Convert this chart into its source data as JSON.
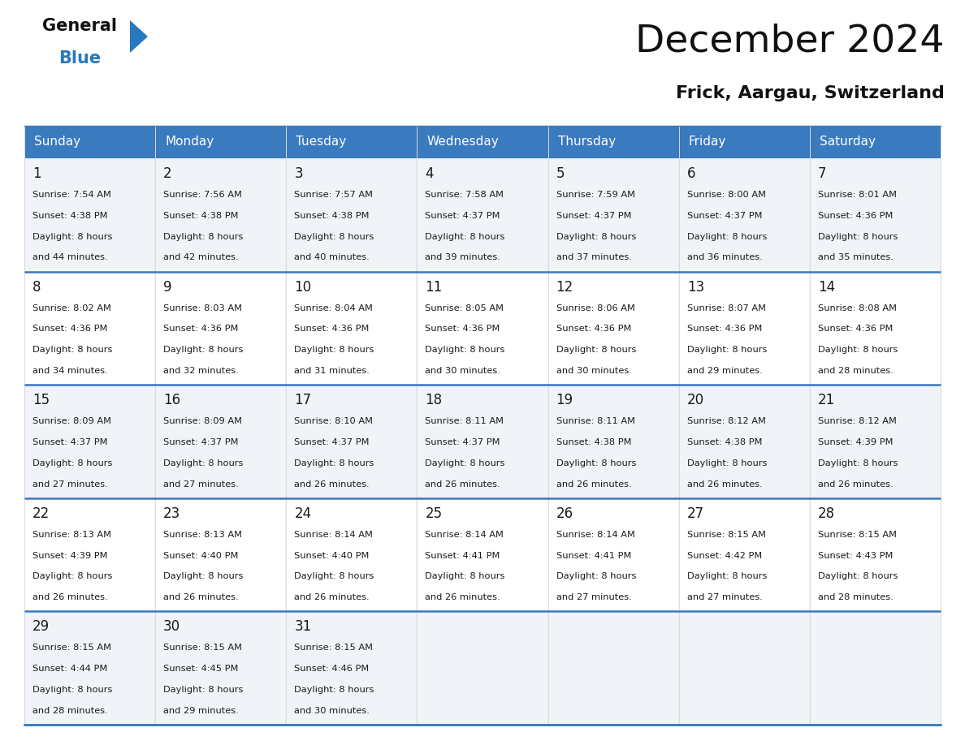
{
  "title": "December 2024",
  "subtitle": "Frick, Aargau, Switzerland",
  "header_color": "#3a7abf",
  "header_text_color": "#ffffff",
  "cell_bg_color": "#f0f4f8",
  "cell_bg_white": "#ffffff",
  "separator_color": "#3a7abf",
  "grid_color": "#cccccc",
  "text_color": "#1a1a1a",
  "day_names": [
    "Sunday",
    "Monday",
    "Tuesday",
    "Wednesday",
    "Thursday",
    "Friday",
    "Saturday"
  ],
  "days": [
    {
      "day": 1,
      "col": 0,
      "row": 0,
      "sunrise": "7:54 AM",
      "sunset": "4:38 PM",
      "daylight_min": "44"
    },
    {
      "day": 2,
      "col": 1,
      "row": 0,
      "sunrise": "7:56 AM",
      "sunset": "4:38 PM",
      "daylight_min": "42"
    },
    {
      "day": 3,
      "col": 2,
      "row": 0,
      "sunrise": "7:57 AM",
      "sunset": "4:38 PM",
      "daylight_min": "40"
    },
    {
      "day": 4,
      "col": 3,
      "row": 0,
      "sunrise": "7:58 AM",
      "sunset": "4:37 PM",
      "daylight_min": "39"
    },
    {
      "day": 5,
      "col": 4,
      "row": 0,
      "sunrise": "7:59 AM",
      "sunset": "4:37 PM",
      "daylight_min": "37"
    },
    {
      "day": 6,
      "col": 5,
      "row": 0,
      "sunrise": "8:00 AM",
      "sunset": "4:37 PM",
      "daylight_min": "36"
    },
    {
      "day": 7,
      "col": 6,
      "row": 0,
      "sunrise": "8:01 AM",
      "sunset": "4:36 PM",
      "daylight_min": "35"
    },
    {
      "day": 8,
      "col": 0,
      "row": 1,
      "sunrise": "8:02 AM",
      "sunset": "4:36 PM",
      "daylight_min": "34"
    },
    {
      "day": 9,
      "col": 1,
      "row": 1,
      "sunrise": "8:03 AM",
      "sunset": "4:36 PM",
      "daylight_min": "32"
    },
    {
      "day": 10,
      "col": 2,
      "row": 1,
      "sunrise": "8:04 AM",
      "sunset": "4:36 PM",
      "daylight_min": "31"
    },
    {
      "day": 11,
      "col": 3,
      "row": 1,
      "sunrise": "8:05 AM",
      "sunset": "4:36 PM",
      "daylight_min": "30"
    },
    {
      "day": 12,
      "col": 4,
      "row": 1,
      "sunrise": "8:06 AM",
      "sunset": "4:36 PM",
      "daylight_min": "30"
    },
    {
      "day": 13,
      "col": 5,
      "row": 1,
      "sunrise": "8:07 AM",
      "sunset": "4:36 PM",
      "daylight_min": "29"
    },
    {
      "day": 14,
      "col": 6,
      "row": 1,
      "sunrise": "8:08 AM",
      "sunset": "4:36 PM",
      "daylight_min": "28"
    },
    {
      "day": 15,
      "col": 0,
      "row": 2,
      "sunrise": "8:09 AM",
      "sunset": "4:37 PM",
      "daylight_min": "27"
    },
    {
      "day": 16,
      "col": 1,
      "row": 2,
      "sunrise": "8:09 AM",
      "sunset": "4:37 PM",
      "daylight_min": "27"
    },
    {
      "day": 17,
      "col": 2,
      "row": 2,
      "sunrise": "8:10 AM",
      "sunset": "4:37 PM",
      "daylight_min": "26"
    },
    {
      "day": 18,
      "col": 3,
      "row": 2,
      "sunrise": "8:11 AM",
      "sunset": "4:37 PM",
      "daylight_min": "26"
    },
    {
      "day": 19,
      "col": 4,
      "row": 2,
      "sunrise": "8:11 AM",
      "sunset": "4:38 PM",
      "daylight_min": "26"
    },
    {
      "day": 20,
      "col": 5,
      "row": 2,
      "sunrise": "8:12 AM",
      "sunset": "4:38 PM",
      "daylight_min": "26"
    },
    {
      "day": 21,
      "col": 6,
      "row": 2,
      "sunrise": "8:12 AM",
      "sunset": "4:39 PM",
      "daylight_min": "26"
    },
    {
      "day": 22,
      "col": 0,
      "row": 3,
      "sunrise": "8:13 AM",
      "sunset": "4:39 PM",
      "daylight_min": "26"
    },
    {
      "day": 23,
      "col": 1,
      "row": 3,
      "sunrise": "8:13 AM",
      "sunset": "4:40 PM",
      "daylight_min": "26"
    },
    {
      "day": 24,
      "col": 2,
      "row": 3,
      "sunrise": "8:14 AM",
      "sunset": "4:40 PM",
      "daylight_min": "26"
    },
    {
      "day": 25,
      "col": 3,
      "row": 3,
      "sunrise": "8:14 AM",
      "sunset": "4:41 PM",
      "daylight_min": "26"
    },
    {
      "day": 26,
      "col": 4,
      "row": 3,
      "sunrise": "8:14 AM",
      "sunset": "4:41 PM",
      "daylight_min": "27"
    },
    {
      "day": 27,
      "col": 5,
      "row": 3,
      "sunrise": "8:15 AM",
      "sunset": "4:42 PM",
      "daylight_min": "27"
    },
    {
      "day": 28,
      "col": 6,
      "row": 3,
      "sunrise": "8:15 AM",
      "sunset": "4:43 PM",
      "daylight_min": "28"
    },
    {
      "day": 29,
      "col": 0,
      "row": 4,
      "sunrise": "8:15 AM",
      "sunset": "4:44 PM",
      "daylight_min": "28"
    },
    {
      "day": 30,
      "col": 1,
      "row": 4,
      "sunrise": "8:15 AM",
      "sunset": "4:45 PM",
      "daylight_min": "29"
    },
    {
      "day": 31,
      "col": 2,
      "row": 4,
      "sunrise": "8:15 AM",
      "sunset": "4:46 PM",
      "daylight_min": "30"
    }
  ],
  "num_rows": 5,
  "logo_blue_color": "#2878be",
  "logo_triangle_color": "#2878be"
}
